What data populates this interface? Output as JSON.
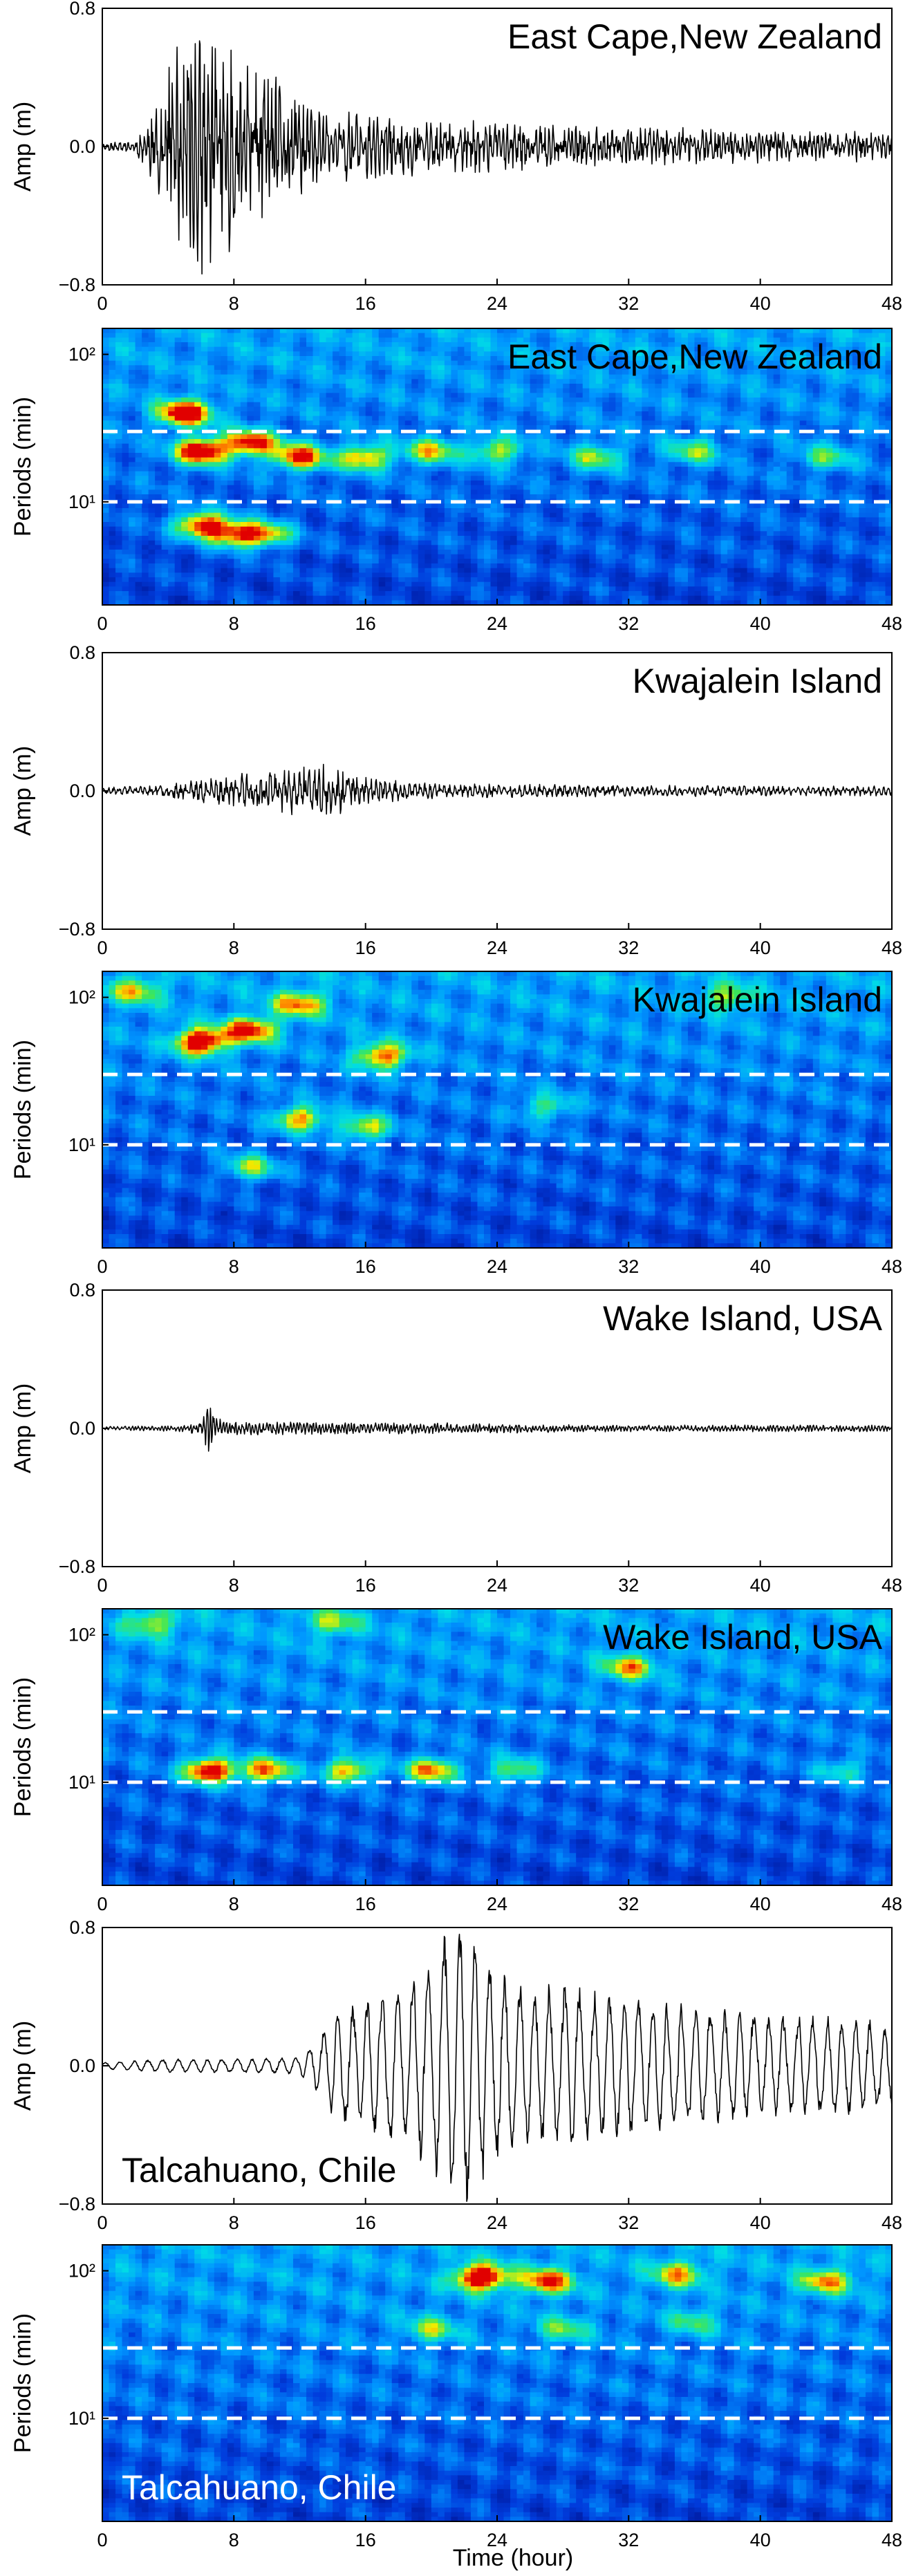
{
  "figure": {
    "xlabel": "Time (hour)",
    "xticks": [
      "0",
      "8",
      "16",
      "24",
      "32",
      "40",
      "48"
    ]
  },
  "chart_data": [
    {
      "type": "line",
      "station": "East Cape,New Zealand",
      "ylabel": "Amp (m)",
      "xlim": [
        0,
        48
      ],
      "ylim": [
        -0.8,
        0.8
      ],
      "yticks": [
        "0.8",
        "0.0",
        "−0.8"
      ],
      "xticks": [
        "0",
        "8",
        "16",
        "24",
        "32",
        "40",
        "48"
      ],
      "envelope": {
        "x": [
          0,
          2,
          3,
          4,
          5,
          6,
          7,
          8,
          9,
          10,
          11,
          12,
          13,
          14,
          16,
          18,
          20,
          24,
          28,
          32,
          36,
          40,
          44,
          48
        ],
        "y": [
          0.02,
          0.04,
          0.2,
          0.5,
          0.65,
          0.75,
          0.7,
          0.65,
          0.5,
          0.45,
          0.4,
          0.3,
          0.25,
          0.22,
          0.2,
          0.18,
          0.16,
          0.15,
          0.13,
          0.12,
          0.11,
          0.1,
          0.09,
          0.09
        ]
      },
      "period_hours": 0.25,
      "roughness": 0.55,
      "seed": 11,
      "label_anchor": "top-right"
    },
    {
      "type": "heatmap",
      "station": "East Cape,New Zealand",
      "ylabel": "Periods (min)",
      "xlim": [
        0,
        48
      ],
      "ylim": [
        2,
        150
      ],
      "yscale": "log",
      "yticks": [
        "10¹",
        "10²"
      ],
      "xticks": [
        "0",
        "8",
        "16",
        "24",
        "32",
        "40",
        "48"
      ],
      "reference_periods_min": [
        10,
        30
      ],
      "blobs": [
        {
          "t": 5,
          "p": 40,
          "intensity": 1.0
        },
        {
          "t": 6,
          "p": 22,
          "intensity": 1.0
        },
        {
          "t": 9,
          "p": 25,
          "intensity": 0.85
        },
        {
          "t": 12,
          "p": 20,
          "intensity": 0.85
        },
        {
          "t": 6,
          "p": 7,
          "intensity": 0.9
        },
        {
          "t": 8,
          "p": 6,
          "intensity": 0.75
        },
        {
          "t": 10,
          "p": 6,
          "intensity": 0.65
        },
        {
          "t": 16,
          "p": 20,
          "intensity": 0.7
        },
        {
          "t": 20,
          "p": 22,
          "intensity": 0.6
        },
        {
          "t": 24,
          "p": 22,
          "intensity": 0.55
        },
        {
          "t": 30,
          "p": 20,
          "intensity": 0.5
        },
        {
          "t": 36,
          "p": 22,
          "intensity": 0.45
        },
        {
          "t": 44,
          "p": 20,
          "intensity": 0.4
        }
      ],
      "label_anchor": "top-right"
    },
    {
      "type": "line",
      "station": "Kwajalein Island",
      "ylabel": "Amp (m)",
      "xlim": [
        0,
        48
      ],
      "ylim": [
        -0.8,
        0.8
      ],
      "yticks": [
        "0.8",
        "0.0",
        "−0.8"
      ],
      "xticks": [
        "0",
        "8",
        "16",
        "24",
        "32",
        "40",
        "48"
      ],
      "envelope": {
        "x": [
          0,
          4,
          6,
          8,
          10,
          12,
          14,
          15,
          16,
          18,
          20,
          24,
          32,
          40,
          48
        ],
        "y": [
          0.02,
          0.04,
          0.07,
          0.1,
          0.13,
          0.14,
          0.16,
          0.12,
          0.09,
          0.06,
          0.05,
          0.04,
          0.035,
          0.03,
          0.03
        ]
      },
      "period_hours": 0.3,
      "roughness": 0.5,
      "seed": 23,
      "label_anchor": "top-right"
    },
    {
      "type": "heatmap",
      "station": "Kwajalein Island",
      "ylabel": "Periods (min)",
      "xlim": [
        0,
        48
      ],
      "ylim": [
        2,
        150
      ],
      "yscale": "log",
      "yticks": [
        "10¹",
        "10²"
      ],
      "xticks": [
        "0",
        "8",
        "16",
        "24",
        "32",
        "40",
        "48"
      ],
      "reference_periods_min": [
        10,
        30
      ],
      "blobs": [
        {
          "t": 6,
          "p": 50,
          "intensity": 1.0
        },
        {
          "t": 9,
          "p": 60,
          "intensity": 0.8
        },
        {
          "t": 12,
          "p": 90,
          "intensity": 0.65
        },
        {
          "t": 17,
          "p": 40,
          "intensity": 0.75
        },
        {
          "t": 2,
          "p": 110,
          "intensity": 0.5
        },
        {
          "t": 12,
          "p": 15,
          "intensity": 0.7
        },
        {
          "t": 16,
          "p": 13,
          "intensity": 0.6
        },
        {
          "t": 9,
          "p": 7,
          "intensity": 0.55
        },
        {
          "t": 27,
          "p": 18,
          "intensity": 0.4
        },
        {
          "t": 38,
          "p": 100,
          "intensity": 0.45
        }
      ],
      "label_anchor": "top-right"
    },
    {
      "type": "line",
      "station": "Wake Island, USA",
      "ylabel": "Amp (m)",
      "xlim": [
        0,
        48
      ],
      "ylim": [
        -0.8,
        0.8
      ],
      "yticks": [
        "0.8",
        "0.0",
        "−0.8"
      ],
      "xticks": [
        "0",
        "8",
        "16",
        "24",
        "32",
        "40",
        "48"
      ],
      "envelope": {
        "x": [
          0,
          5,
          6,
          6.5,
          7,
          8,
          12,
          16,
          24,
          32,
          40,
          48
        ],
        "y": [
          0.01,
          0.02,
          0.05,
          0.15,
          0.06,
          0.04,
          0.04,
          0.035,
          0.03,
          0.02,
          0.02,
          0.02
        ]
      },
      "period_hours": 0.2,
      "roughness": 0.45,
      "seed": 37,
      "label_anchor": "top-right"
    },
    {
      "type": "heatmap",
      "station": "Wake Island, USA",
      "ylabel": "Periods (min)",
      "xlim": [
        0,
        48
      ],
      "ylim": [
        2,
        150
      ],
      "yscale": "log",
      "yticks": [
        "10¹",
        "10²"
      ],
      "xticks": [
        "0",
        "8",
        "16",
        "24",
        "32",
        "40",
        "48"
      ],
      "reference_periods_min": [
        10,
        30
      ],
      "blobs": [
        {
          "t": 6.5,
          "p": 12,
          "intensity": 1.0
        },
        {
          "t": 10,
          "p": 12,
          "intensity": 0.75
        },
        {
          "t": 15,
          "p": 12,
          "intensity": 0.7
        },
        {
          "t": 20,
          "p": 12,
          "intensity": 0.75
        },
        {
          "t": 25,
          "p": 12,
          "intensity": 0.5
        },
        {
          "t": 32,
          "p": 60,
          "intensity": 0.6
        },
        {
          "t": 3,
          "p": 120,
          "intensity": 0.45
        },
        {
          "t": 14,
          "p": 120,
          "intensity": 0.4
        },
        {
          "t": 45,
          "p": 12,
          "intensity": 0.35
        }
      ],
      "label_anchor": "top-right"
    },
    {
      "type": "line",
      "station": "Talcahuano, Chile",
      "ylabel": "Amp (m)",
      "xlim": [
        0,
        48
      ],
      "ylim": [
        -0.8,
        0.8
      ],
      "yticks": [
        "0.8",
        "0.0",
        "−0.8"
      ],
      "xticks": [
        "0",
        "8",
        "16",
        "24",
        "32",
        "40",
        "48"
      ],
      "envelope": {
        "x": [
          0,
          4,
          8,
          12,
          13,
          14,
          16,
          18,
          20,
          21,
          22,
          23,
          24,
          26,
          28,
          32,
          36,
          40,
          44,
          48
        ],
        "y": [
          0.02,
          0.04,
          0.04,
          0.05,
          0.15,
          0.3,
          0.4,
          0.45,
          0.6,
          0.8,
          0.85,
          0.7,
          0.55,
          0.45,
          0.5,
          0.4,
          0.35,
          0.3,
          0.3,
          0.25
        ]
      },
      "period_hours": 0.9,
      "roughness": 0.15,
      "seed": 51,
      "label_anchor": "bottom-left"
    },
    {
      "type": "heatmap",
      "station": "Talcahuano, Chile",
      "ylabel": "Periods (min)",
      "xlim": [
        0,
        48
      ],
      "ylim": [
        2,
        150
      ],
      "yscale": "log",
      "yticks": [
        "10¹",
        "10²"
      ],
      "xticks": [
        "0",
        "8",
        "16",
        "24",
        "32",
        "40",
        "48"
      ],
      "reference_periods_min": [
        10,
        30
      ],
      "blobs": [
        {
          "t": 23,
          "p": 90,
          "intensity": 1.0
        },
        {
          "t": 27,
          "p": 85,
          "intensity": 0.75
        },
        {
          "t": 35,
          "p": 95,
          "intensity": 0.55
        },
        {
          "t": 44,
          "p": 85,
          "intensity": 0.6
        },
        {
          "t": 20,
          "p": 40,
          "intensity": 0.45
        },
        {
          "t": 28,
          "p": 40,
          "intensity": 0.4
        },
        {
          "t": 36,
          "p": 45,
          "intensity": 0.35
        }
      ],
      "label_anchor": "bottom-left"
    }
  ]
}
